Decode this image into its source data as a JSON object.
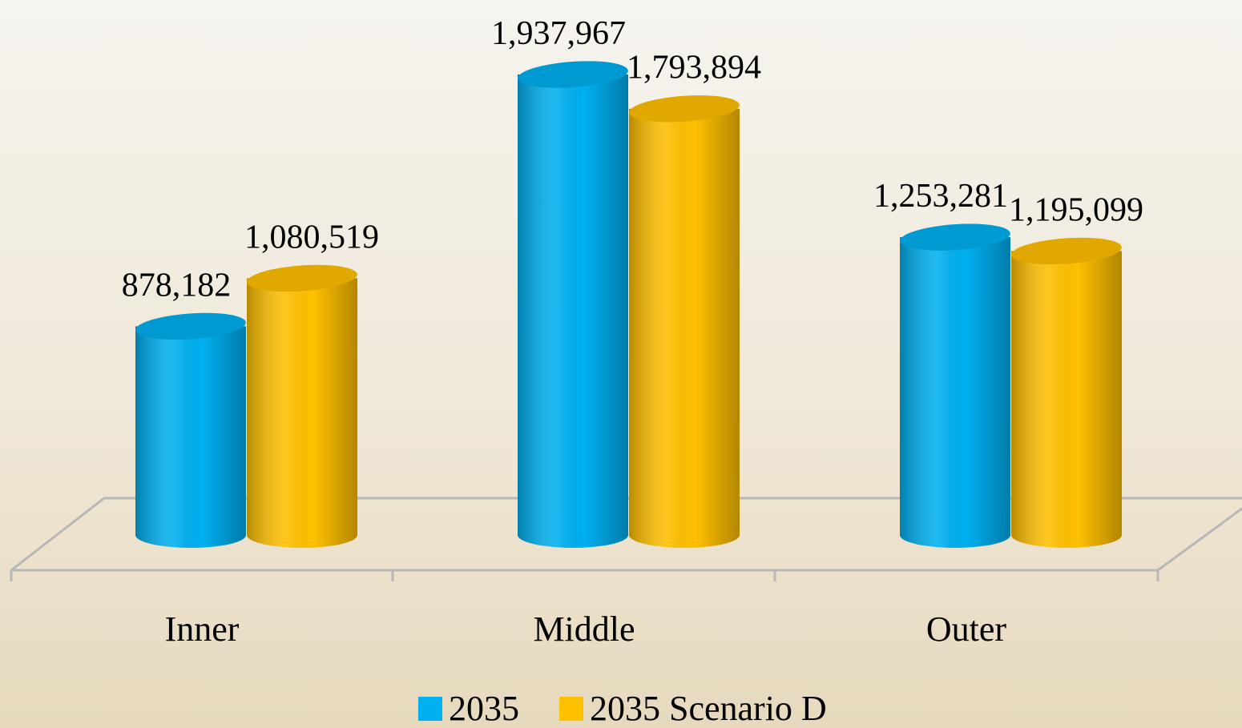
{
  "chart_data": {
    "type": "bar",
    "categories": [
      "Inner",
      "Middle",
      "Outer"
    ],
    "series": [
      {
        "name": "2035",
        "color": "#00b0f0",
        "values": [
          878182,
          1937967,
          1253281
        ],
        "value_labels": [
          "878,182",
          "1,937,967",
          "1,253,281"
        ]
      },
      {
        "name": "2035 Scenario D",
        "color": "#ffc000",
        "values": [
          1080519,
          1793894,
          1195099
        ],
        "value_labels": [
          "1,080,519",
          "1,793,894",
          "1,195,099"
        ]
      }
    ],
    "legend": "bottom"
  }
}
